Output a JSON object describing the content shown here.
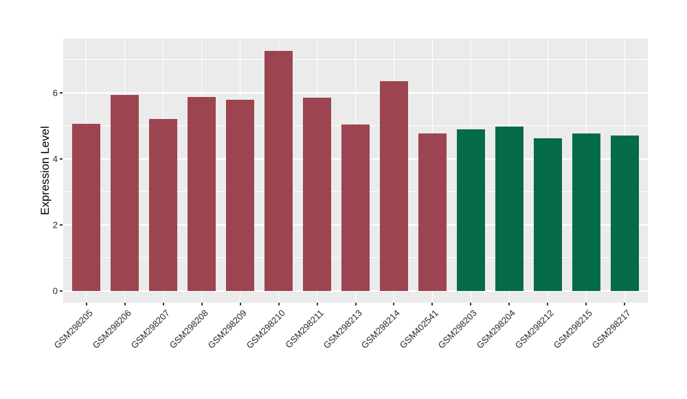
{
  "chart_data": {
    "type": "bar",
    "title": "",
    "xlabel": "",
    "ylabel": "Expression Level",
    "categories": [
      "GSM298205",
      "GSM298206",
      "GSM298207",
      "GSM298208",
      "GSM298209",
      "GSM298210",
      "GSM298211",
      "GSM298213",
      "GSM298214",
      "GSM402541",
      "GSM298203",
      "GSM298204",
      "GSM298212",
      "GSM298215",
      "GSM298217"
    ],
    "values": [
      5.06,
      5.93,
      5.2,
      5.86,
      5.78,
      7.27,
      5.84,
      5.04,
      6.34,
      4.76,
      4.89,
      4.97,
      4.62,
      4.76,
      4.71
    ],
    "groups": [
      "group1",
      "group1",
      "group1",
      "group1",
      "group1",
      "group1",
      "group1",
      "group1",
      "group1",
      "group1",
      "group2",
      "group2",
      "group2",
      "group2",
      "group2"
    ],
    "group_colors": {
      "group1": "#9C4450",
      "group2": "#056A4A"
    },
    "yticks": [
      0,
      2,
      4,
      6
    ],
    "yticks_minor": [
      1,
      3,
      5,
      7
    ],
    "ylim": [
      -0.36,
      7.64
    ],
    "grid": true,
    "legend": "none",
    "x_label_rotation_deg": 45,
    "style": {
      "panel_bg": "#EBEBEB",
      "grid_major_color": "#FFFFFF",
      "grid_minor_color": "#FFFFFF",
      "tick_mark_color": "#333333",
      "tick_label_color": "#262626",
      "axis_title_color": "#000000"
    }
  }
}
